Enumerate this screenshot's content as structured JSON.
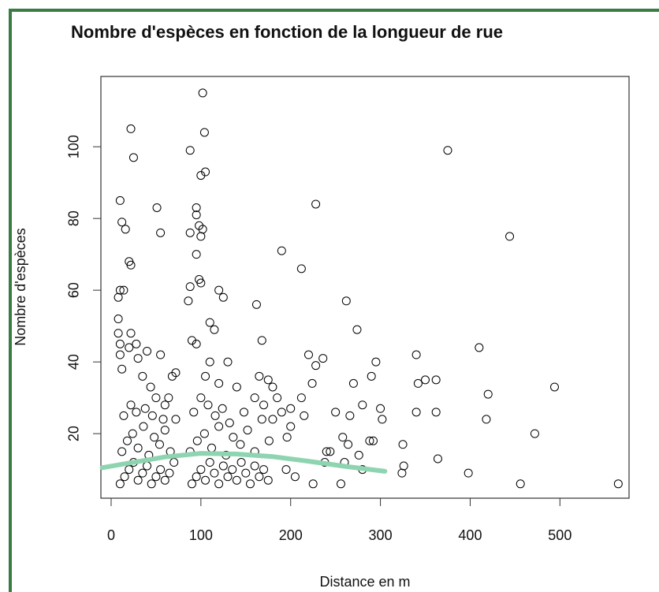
{
  "chart_data": {
    "type": "scatter",
    "title": "Nombre d'espèces en fonction de la longueur de rue",
    "x_label": "Distance en m",
    "y_label": "Nombre d'espèces",
    "color": "#000000",
    "x": [
      22,
      25,
      102,
      104,
      88,
      100,
      105,
      375,
      444,
      228,
      51,
      55,
      10,
      12,
      16,
      20,
      22,
      95,
      95,
      98,
      102,
      100,
      88,
      95,
      100,
      98,
      88,
      86,
      190,
      212,
      162,
      262,
      274,
      168,
      410,
      340,
      420,
      350,
      362,
      342,
      340,
      362,
      418,
      472,
      494,
      398,
      456,
      565,
      364,
      325,
      326,
      324,
      295,
      290,
      300,
      302,
      258,
      264,
      276,
      288,
      292,
      244,
      240,
      238,
      220,
      228,
      236,
      224,
      212,
      200,
      196,
      215,
      195,
      205,
      225,
      256,
      260,
      280,
      8,
      10,
      14,
      8,
      8,
      10,
      10,
      12,
      20,
      22,
      28,
      30,
      40,
      55,
      35,
      44,
      50,
      68,
      72,
      64,
      60,
      120,
      125,
      110,
      115,
      90,
      95,
      110,
      130,
      105,
      120,
      140,
      165,
      175,
      180,
      185,
      170,
      160,
      180,
      190,
      200,
      250,
      266,
      270,
      280,
      10,
      15,
      20,
      25,
      30,
      35,
      40,
      45,
      50,
      55,
      60,
      65,
      70,
      12,
      18,
      24,
      30,
      36,
      42,
      48,
      54,
      60,
      66,
      72,
      14,
      22,
      28,
      38,
      46,
      58,
      90,
      95,
      100,
      105,
      110,
      115,
      120,
      125,
      130,
      135,
      140,
      145,
      150,
      155,
      160,
      165,
      170,
      175,
      88,
      96,
      104,
      112,
      120,
      128,
      136,
      144,
      152,
      160,
      168,
      176,
      92,
      100,
      108,
      116,
      124,
      132,
      148
    ],
    "values": [
      105,
      97,
      115,
      104,
      99,
      92,
      93,
      99,
      75,
      84,
      83,
      76,
      85,
      79,
      77,
      68,
      67,
      83,
      81,
      78,
      77,
      75,
      76,
      70,
      62,
      63,
      61,
      57,
      71,
      66,
      56,
      57,
      49,
      46,
      44,
      42,
      31,
      35,
      35,
      34,
      26,
      26,
      24,
      20,
      33,
      9,
      6,
      6,
      13,
      17,
      11,
      9,
      40,
      36,
      27,
      24,
      19,
      17,
      14,
      18,
      18,
      15,
      15,
      12,
      42,
      39,
      41,
      34,
      30,
      27,
      19,
      25,
      10,
      8,
      6,
      6,
      12,
      10,
      58,
      60,
      60,
      52,
      48,
      45,
      42,
      38,
      44,
      48,
      45,
      41,
      43,
      42,
      36,
      33,
      30,
      36,
      37,
      30,
      28,
      60,
      58,
      51,
      49,
      46,
      45,
      40,
      40,
      36,
      34,
      33,
      36,
      35,
      33,
      30,
      28,
      30,
      24,
      26,
      22,
      26,
      25,
      34,
      28,
      6,
      8,
      10,
      12,
      7,
      9,
      11,
      6,
      8,
      10,
      7,
      9,
      12,
      15,
      18,
      20,
      16,
      22,
      14,
      19,
      17,
      21,
      15,
      24,
      25,
      28,
      26,
      27,
      25,
      24,
      6,
      8,
      10,
      7,
      12,
      9,
      6,
      11,
      8,
      10,
      7,
      12,
      9,
      6,
      11,
      8,
      10,
      7,
      15,
      18,
      20,
      16,
      22,
      14,
      19,
      17,
      21,
      15,
      24,
      18,
      26,
      30,
      28,
      25,
      27,
      23,
      26
    ],
    "trend_line": {
      "color": "#8fd4b0",
      "x": [
        -10,
        20,
        60,
        100,
        140,
        180,
        220,
        260,
        305
      ],
      "values": [
        10.5,
        11.8,
        13.5,
        14.5,
        14.3,
        13.6,
        12.3,
        10.9,
        9.5
      ]
    },
    "xlim": [
      -11.4,
      577
    ],
    "ylim": [
      2,
      119.6
    ],
    "xticks": [
      0,
      100,
      200,
      300,
      400,
      500
    ],
    "yticks": [
      20,
      40,
      60,
      80,
      100
    ]
  }
}
